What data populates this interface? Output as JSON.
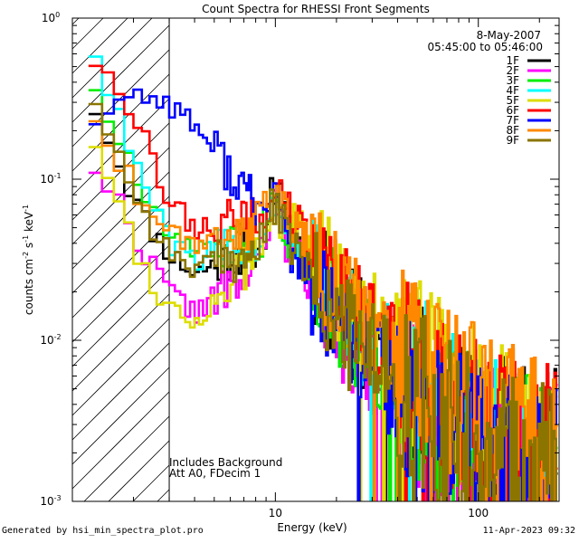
{
  "chart_data": {
    "type": "line",
    "title": "Count Spectra for RHESSI Front Segments",
    "xlabel": "Energy (keV)",
    "ylabel_parts": [
      "counts cm",
      "-2",
      " s",
      "-1",
      " keV",
      "-1"
    ],
    "xscale": "log",
    "yscale": "log",
    "xlim": [
      1.0,
      250.0
    ],
    "ylim": [
      0.001,
      1.0
    ],
    "x_ticks": [
      {
        "value": 10,
        "label": "10"
      },
      {
        "value": 100,
        "label": "100"
      }
    ],
    "y_ticks": [
      {
        "value": 0.001,
        "base": "10",
        "exp": "-3"
      },
      {
        "value": 0.01,
        "base": "10",
        "exp": "-2"
      },
      {
        "value": 0.1,
        "base": "10",
        "exp": "-1"
      },
      {
        "value": 1,
        "base": "10",
        "exp": "0"
      }
    ],
    "date": "8-May-2007",
    "time_range": "05:45:00 to 05:46:00",
    "annotations": [
      "Includes Background",
      "Att A0, FDecim 1"
    ],
    "hatched_region_max_kev": 3.0,
    "series": [
      {
        "name": "1F",
        "color": "#000000",
        "seed": 11,
        "low": [
          0.35,
          0.15,
          0.06,
          0.035,
          0.026
        ],
        "line_amp": 0.075,
        "tail": [
          0.05,
          0.016,
          0.0065,
          0.0032,
          0.0019
        ]
      },
      {
        "name": "2F",
        "color": "#ff00ff",
        "seed": 22,
        "low": [
          0.14,
          0.08,
          0.038,
          0.02,
          0.015
        ],
        "line_amp": 0.06,
        "tail": [
          0.04,
          0.012,
          0.005,
          0.0025,
          0.0015
        ]
      },
      {
        "name": "3F",
        "color": "#00ee00",
        "seed": 33,
        "low": [
          0.5,
          0.2,
          0.085,
          0.045,
          0.035
        ],
        "line_amp": 0.07,
        "tail": [
          0.045,
          0.015,
          0.006,
          0.003,
          0.0017
        ]
      },
      {
        "name": "4F",
        "color": "#00ffff",
        "seed": 44,
        "low": [
          0.85,
          0.28,
          0.1,
          0.04,
          0.032
        ],
        "line_amp": 0.07,
        "tail": [
          0.05,
          0.017,
          0.0068,
          0.0034,
          0.002
        ]
      },
      {
        "name": "5F",
        "color": "#dddd00",
        "seed": 55,
        "low": [
          0.22,
          0.09,
          0.03,
          0.016,
          0.013
        ],
        "line_amp": 0.055,
        "tail": [
          0.055,
          0.022,
          0.009,
          0.004,
          0.0022
        ]
      },
      {
        "name": "6F",
        "color": "#ff0000",
        "seed": 66,
        "low": [
          0.58,
          0.48,
          0.19,
          0.075,
          0.05
        ],
        "line_amp": 0.075,
        "tail": [
          0.06,
          0.02,
          0.008,
          0.0038,
          0.0022
        ]
      },
      {
        "name": "7F",
        "color": "#0000ff",
        "seed": 77,
        "low": [
          0.22,
          0.3,
          0.34,
          0.3,
          0.22
        ],
        "line_amp": 0.06,
        "tail": [
          0.035,
          0.012,
          0.005,
          0.0025,
          0.0015
        ]
      },
      {
        "name": "8F",
        "color": "#ff8800",
        "seed": 88,
        "low": [
          0.3,
          0.15,
          0.075,
          0.05,
          0.04
        ],
        "line_amp": 0.065,
        "tail": [
          0.06,
          0.021,
          0.0085,
          0.0042,
          0.0025
        ]
      },
      {
        "name": "9F",
        "color": "#8b7500",
        "seed": 99,
        "low": [
          0.4,
          0.17,
          0.065,
          0.035,
          0.028
        ],
        "line_amp": 0.06,
        "tail": [
          0.04,
          0.013,
          0.0055,
          0.0028,
          0.0016
        ]
      }
    ]
  },
  "footer": {
    "generated_by": "Generated by hsi_min_spectra_plot.pro",
    "timestamp": "11-Apr-2023 09:32"
  }
}
